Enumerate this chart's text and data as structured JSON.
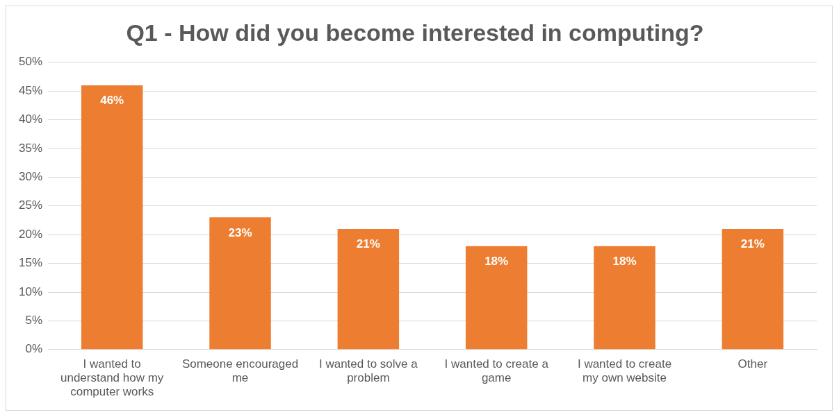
{
  "chart_data": {
    "type": "bar",
    "title": "Q1 - How did you become interested in computing?",
    "categories": [
      "I wanted to understand how my computer works",
      "Someone encouraged me",
      "I wanted to solve a problem",
      "I wanted to create a game",
      "I wanted to create my own website",
      "Other"
    ],
    "values": [
      46,
      23,
      21,
      18,
      18,
      21
    ],
    "value_labels": [
      "46%",
      "23%",
      "21%",
      "18%",
      "18%",
      "21%"
    ],
    "color": "#ed7d31",
    "ylim": [
      0,
      50
    ],
    "yticks": [
      {
        "value": 0,
        "label": "0%"
      },
      {
        "value": 5,
        "label": "5%"
      },
      {
        "value": 10,
        "label": "10%"
      },
      {
        "value": 15,
        "label": "15%"
      },
      {
        "value": 20,
        "label": "20%"
      },
      {
        "value": 25,
        "label": "25%"
      },
      {
        "value": 30,
        "label": "30%"
      },
      {
        "value": 35,
        "label": "35%"
      },
      {
        "value": 40,
        "label": "40%"
      },
      {
        "value": 45,
        "label": "45%"
      },
      {
        "value": 50,
        "label": "50%"
      }
    ],
    "grid": "y",
    "legend": false
  }
}
